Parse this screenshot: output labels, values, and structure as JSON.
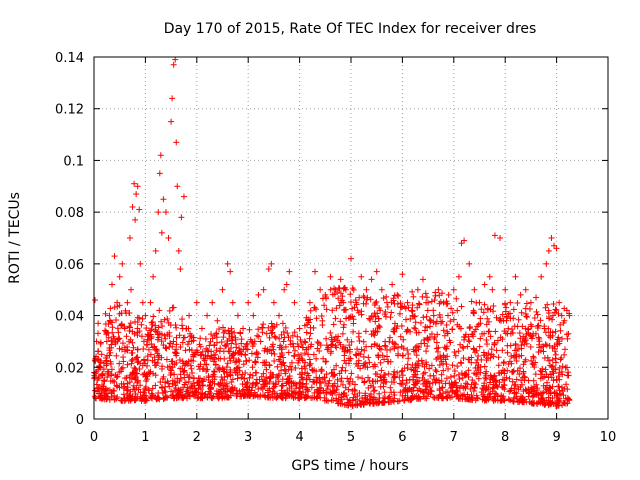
{
  "chart_data": {
    "type": "scatter",
    "title": "Day 170 of 2015, Rate Of TEC Index for receiver dres",
    "xlabel": "GPS time / hours",
    "ylabel": "ROTI / TECUs",
    "xlim": [
      0,
      10
    ],
    "ylim": [
      0,
      0.14
    ],
    "xticks": [
      0,
      1,
      2,
      3,
      4,
      5,
      6,
      7,
      8,
      9,
      10
    ],
    "xtick_labels": [
      "0",
      "1",
      "2",
      "3",
      "4",
      "5",
      "6",
      "7",
      "8",
      "9",
      "10"
    ],
    "yticks": [
      0,
      0.02,
      0.04,
      0.06,
      0.08,
      0.1,
      0.12,
      0.14
    ],
    "ytick_labels": [
      "0",
      "0.02",
      "0.04",
      "0.06",
      "0.08",
      "0.1",
      "0.12",
      "0.14"
    ],
    "grid": true,
    "marker": "+",
    "color": "#ff0000",
    "series": [
      {
        "name": "ROTI",
        "x": [
          0.0,
          0.02,
          0.05,
          0.08,
          0.1,
          0.15,
          0.2,
          0.25,
          0.3,
          0.35,
          0.4,
          0.45,
          0.5,
          0.55,
          0.6,
          0.65,
          0.7,
          0.72,
          0.75,
          0.78,
          0.8,
          0.82,
          0.85,
          0.88,
          0.9,
          0.95,
          1.0,
          1.05,
          1.1,
          1.15,
          1.2,
          1.25,
          1.28,
          1.3,
          1.32,
          1.35,
          1.4,
          1.45,
          1.5,
          1.52,
          1.55,
          1.58,
          1.6,
          1.62,
          1.65,
          1.68,
          1.7,
          1.75,
          1.8,
          1.85,
          1.9,
          1.95,
          2.0,
          2.1,
          2.2,
          2.3,
          2.4,
          2.5,
          2.6,
          2.65,
          2.7,
          2.8,
          2.9,
          3.0,
          3.1,
          3.2,
          3.3,
          3.4,
          3.45,
          3.5,
          3.6,
          3.7,
          3.75,
          3.8,
          3.9,
          4.0,
          4.1,
          4.2,
          4.3,
          4.4,
          4.5,
          4.6,
          4.7,
          4.8,
          4.85,
          4.9,
          5.0,
          5.1,
          5.2,
          5.3,
          5.4,
          5.5,
          5.6,
          5.7,
          5.8,
          5.9,
          6.0,
          6.1,
          6.2,
          6.3,
          6.4,
          6.5,
          6.6,
          6.7,
          6.8,
          6.9,
          7.0,
          7.1,
          7.15,
          7.2,
          7.3,
          7.4,
          7.5,
          7.6,
          7.7,
          7.75,
          7.8,
          7.9,
          8.0,
          8.1,
          8.2,
          8.3,
          8.4,
          8.5,
          8.6,
          8.7,
          8.8,
          8.85,
          8.9,
          8.95,
          9.0,
          9.05,
          9.1,
          9.15,
          9.2,
          9.25
        ],
        "y": [
          0.018,
          0.046,
          0.03,
          0.012,
          0.02,
          0.025,
          0.015,
          0.03,
          0.04,
          0.052,
          0.063,
          0.045,
          0.055,
          0.06,
          0.035,
          0.045,
          0.07,
          0.05,
          0.082,
          0.091,
          0.077,
          0.087,
          0.09,
          0.081,
          0.06,
          0.045,
          0.04,
          0.032,
          0.045,
          0.055,
          0.065,
          0.08,
          0.095,
          0.102,
          0.072,
          0.085,
          0.08,
          0.07,
          0.115,
          0.124,
          0.137,
          0.139,
          0.107,
          0.09,
          0.065,
          0.058,
          0.078,
          0.086,
          0.035,
          0.04,
          0.03,
          0.025,
          0.045,
          0.035,
          0.04,
          0.045,
          0.038,
          0.05,
          0.06,
          0.057,
          0.045,
          0.04,
          0.035,
          0.045,
          0.04,
          0.048,
          0.05,
          0.058,
          0.06,
          0.045,
          0.04,
          0.05,
          0.052,
          0.057,
          0.045,
          0.035,
          0.03,
          0.045,
          0.057,
          0.05,
          0.048,
          0.055,
          0.05,
          0.054,
          0.045,
          0.05,
          0.062,
          0.045,
          0.055,
          0.05,
          0.054,
          0.057,
          0.05,
          0.045,
          0.052,
          0.048,
          0.056,
          0.045,
          0.04,
          0.05,
          0.054,
          0.045,
          0.042,
          0.05,
          0.045,
          0.048,
          0.05,
          0.055,
          0.068,
          0.069,
          0.06,
          0.05,
          0.045,
          0.052,
          0.055,
          0.05,
          0.071,
          0.07,
          0.05,
          0.045,
          0.055,
          0.048,
          0.05,
          0.045,
          0.047,
          0.055,
          0.06,
          0.065,
          0.07,
          0.067,
          0.066,
          0.045,
          0.04,
          0.038,
          0.042,
          0.04
        ]
      }
    ],
    "background_band": {
      "description": "dense cloud of points filling between lower and upper envelopes",
      "x": [
        0,
        0.5,
        1,
        1.5,
        2,
        2.5,
        3,
        3.5,
        4,
        4.3,
        4.5,
        5,
        5.5,
        6,
        6.5,
        7,
        7.5,
        8,
        8.5,
        9,
        9.25
      ],
      "lower": [
        0.008,
        0.007,
        0.007,
        0.008,
        0.008,
        0.008,
        0.009,
        0.008,
        0.008,
        0.008,
        0.007,
        0.005,
        0.006,
        0.007,
        0.008,
        0.008,
        0.007,
        0.007,
        0.006,
        0.005,
        0.006
      ],
      "upper": [
        0.035,
        0.04,
        0.035,
        0.04,
        0.028,
        0.032,
        0.032,
        0.035,
        0.03,
        0.042,
        0.045,
        0.045,
        0.042,
        0.043,
        0.045,
        0.042,
        0.04,
        0.04,
        0.04,
        0.04,
        0.04
      ]
    }
  }
}
